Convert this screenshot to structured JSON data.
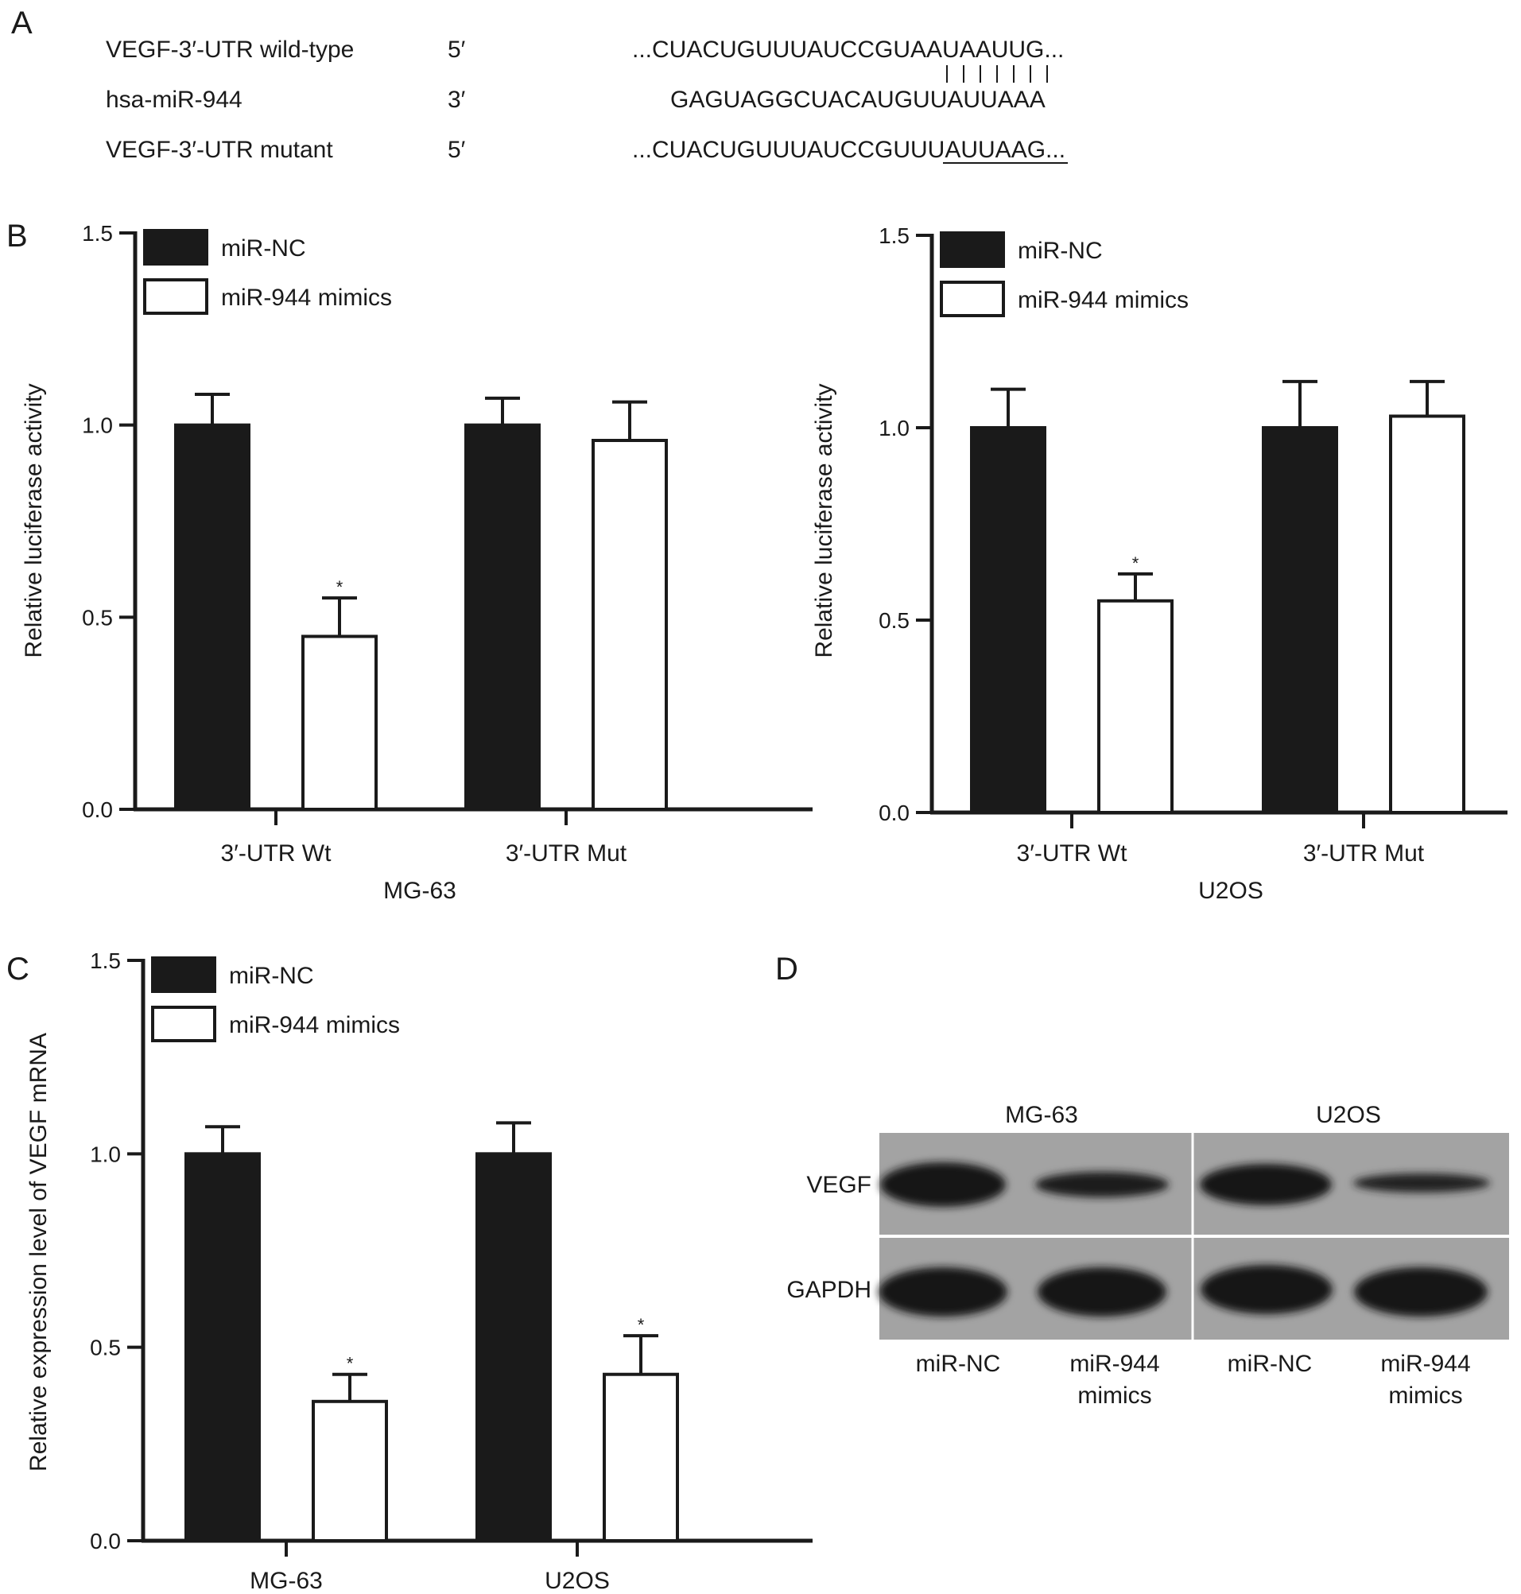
{
  "panel_letters": {
    "a": "A",
    "b": "B",
    "c": "C",
    "d": "D"
  },
  "panel_a": {
    "rows": [
      {
        "name": "VEGF-3′-UTR wild-type",
        "end": "5′",
        "seq": "...CUACUGUUUAUCCGUAAUAAUUG..."
      },
      {
        "name": "hsa-miR-944",
        "end": "3′",
        "seq": "GAGUAGGCUACAUGUUAUUAAA"
      },
      {
        "name": "VEGF-3′-UTR mutant",
        "end": "5′",
        "seq": "...CUACUGUUUAUCCGUUUAUUAAG..."
      }
    ]
  },
  "legend": {
    "nc": "miR-NC",
    "mimics": "miR-944 mimics"
  },
  "colors": {
    "nc_fill": "#1a1a1a",
    "mimics_fill": "#ffffff",
    "axis": "#1a1a1a"
  },
  "chart_data": [
    {
      "id": "B-left",
      "type": "bar",
      "categories": [
        "3′-UTR Wt",
        "3′-UTR Mut"
      ],
      "series": [
        {
          "name": "miR-NC",
          "values": [
            1.0,
            1.0
          ],
          "errors": [
            0.08,
            0.07
          ]
        },
        {
          "name": "miR-944 mimics",
          "values": [
            0.45,
            0.96
          ],
          "errors": [
            0.1,
            0.1
          ]
        }
      ],
      "significance": [
        [
          null,
          null
        ],
        [
          "*",
          null
        ]
      ],
      "xlabel": "MG-63",
      "ylabel": "Relative luciferase activity",
      "ylim": [
        0,
        1.5
      ],
      "yticks": [
        "0.0",
        "0.5",
        "1.0",
        "1.5"
      ],
      "legend_position": "top-left"
    },
    {
      "id": "B-right",
      "type": "bar",
      "categories": [
        "3′-UTR Wt",
        "3′-UTR Mut"
      ],
      "series": [
        {
          "name": "miR-NC",
          "values": [
            1.0,
            1.0
          ],
          "errors": [
            0.1,
            0.12
          ]
        },
        {
          "name": "miR-944 mimics",
          "values": [
            0.55,
            1.03
          ],
          "errors": [
            0.07,
            0.09
          ]
        }
      ],
      "significance": [
        [
          null,
          null
        ],
        [
          "*",
          null
        ]
      ],
      "xlabel": "U2OS",
      "ylabel": "Relative luciferase activity",
      "ylim": [
        0,
        1.5
      ],
      "yticks": [
        "0.0",
        "0.5",
        "1.0",
        "1.5"
      ],
      "legend_position": "top-left"
    },
    {
      "id": "C",
      "type": "bar",
      "categories": [
        "MG-63",
        "U2OS"
      ],
      "series": [
        {
          "name": "miR-NC",
          "values": [
            1.0,
            1.0
          ],
          "errors": [
            0.07,
            0.08
          ]
        },
        {
          "name": "miR-944 mimics",
          "values": [
            0.36,
            0.43
          ],
          "errors": [
            0.07,
            0.1
          ]
        }
      ],
      "significance": [
        [
          null,
          null
        ],
        [
          "*",
          "*"
        ]
      ],
      "xlabel": "",
      "ylabel": "Relative expression level of VEGF mRNA",
      "ylim": [
        0,
        1.5
      ],
      "yticks": [
        "0.0",
        "0.5",
        "1.0",
        "1.5"
      ],
      "legend_position": "top-left"
    }
  ],
  "panel_d": {
    "groups": [
      "MG-63",
      "U2OS"
    ],
    "rows": [
      "VEGF",
      "GAPDH"
    ],
    "lanes": [
      {
        "line1": "miR-NC",
        "line2": ""
      },
      {
        "line1": "miR-944",
        "line2": "mimics"
      },
      {
        "line1": "miR-NC",
        "line2": ""
      },
      {
        "line1": "miR-944",
        "line2": "mimics"
      }
    ]
  }
}
